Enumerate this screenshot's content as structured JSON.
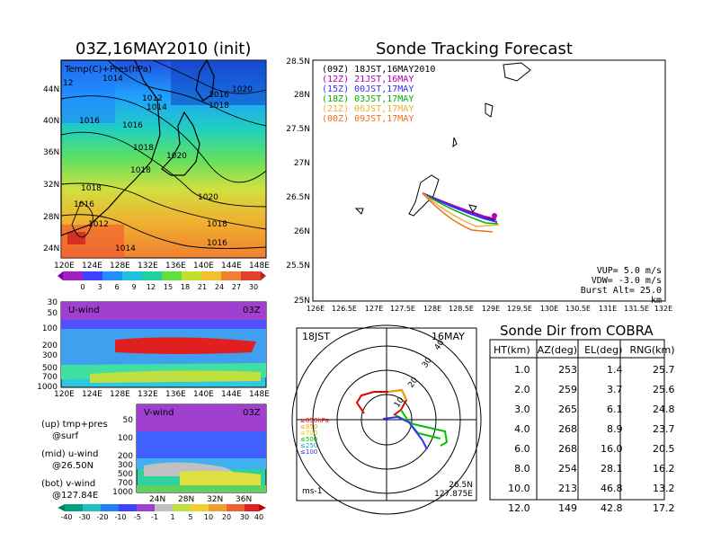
{
  "map_panel": {
    "title": "03Z,16MAY2010 (init)",
    "inner_label": "Temp(C)+Pres(hPa)",
    "lat_ticks": [
      "44N",
      "40N",
      "36N",
      "32N",
      "28N",
      "24N"
    ],
    "lon_ticks": [
      "120E",
      "124E",
      "128E",
      "132E",
      "136E",
      "140E",
      "144E",
      "148E"
    ],
    "isobar_labels": [
      "1014",
      "1012",
      "1016",
      "1020",
      "1016",
      "1018",
      "1020",
      "1018",
      "1020",
      "1016",
      "1018",
      "1020",
      "1018",
      "1012",
      "1014",
      "1016",
      "1018"
    ],
    "colorbar_ticks": [
      "0",
      "3",
      "6",
      "9",
      "12",
      "15",
      "18",
      "21",
      "24",
      "27",
      "30"
    ]
  },
  "u_panel": {
    "label": "U-wind",
    "time": "03Z",
    "y_ticks": [
      "30",
      "50",
      "100",
      "200",
      "300",
      "500",
      "700",
      "1000"
    ],
    "x_ticks": [
      "120E",
      "124E",
      "128E",
      "132E",
      "136E",
      "140E",
      "144E",
      "148E"
    ]
  },
  "v_panel": {
    "label": "V-wind",
    "time": "03Z",
    "y_ticks": [
      "50",
      "100",
      "200",
      "300",
      "500",
      "700",
      "1000"
    ],
    "x_ticks": [
      "24N",
      "28N",
      "32N",
      "36N"
    ],
    "colorbar_ticks": [
      "-40",
      "-30",
      "-20",
      "-10",
      "-5",
      "-1",
      "1",
      "5",
      "10",
      "20",
      "30",
      "40"
    ]
  },
  "legend_notes": {
    "line1": "(up) tmp+pres",
    "line2": "@surf",
    "line3": "(mid) u-wind",
    "line4": "@26.50N",
    "line5": "(bot) v-wind",
    "line6": "@127.84E"
  },
  "tracking": {
    "title": "Sonde Tracking Forecast",
    "lat_ticks": [
      "28.5N",
      "28N",
      "27.5N",
      "27N",
      "26.5N",
      "26N",
      "25.5N",
      "25N"
    ],
    "lon_ticks": [
      "126E",
      "126.5E",
      "127E",
      "127.5E",
      "128E",
      "128.5E",
      "129E",
      "129.5E",
      "130E",
      "130.5E",
      "131E",
      "131.5E",
      "132E"
    ],
    "legend": [
      {
        "text": "(09Z)  18JST,16MAY2010",
        "color": "#000000"
      },
      {
        "text": "(12Z)  21JST,16MAY",
        "color": "#b000b0"
      },
      {
        "text": "(15Z)  00JST,17MAY",
        "color": "#3030ff"
      },
      {
        "text": "(18Z)  03JST,17MAY",
        "color": "#00b000"
      },
      {
        "text": "(21Z)  06JST,17MAY",
        "color": "#f0b030"
      },
      {
        "text": "(00Z)  09JST,17MAY",
        "color": "#f07020"
      }
    ],
    "params": {
      "vup": "VUP=  5.0 m/s",
      "vdw": "VDW= -3.0 m/s",
      "burst": "Burst Alt= 25.0 km"
    }
  },
  "polar": {
    "time_label": "18JST",
    "date_label": "16MAY",
    "ring_labels": [
      "10",
      "20",
      "30",
      "40"
    ],
    "unit": "ms-1",
    "lat": "26.5N",
    "lon": "127.875E",
    "levels": [
      {
        "text": "≥850hPa",
        "color": "#e00000"
      },
      {
        "text": "≤850",
        "color": "#f0a000"
      },
      {
        "text": "≤700",
        "color": "#e0d000"
      },
      {
        "text": "≤500",
        "color": "#00c000"
      },
      {
        "text": "≤250",
        "color": "#00b0c0"
      },
      {
        "text": "≤100",
        "color": "#3030ff"
      }
    ]
  },
  "cobra": {
    "title": "Sonde Dir from COBRA",
    "headers": [
      "HT(km)",
      "AZ(deg)",
      "EL(deg)",
      "RNG(km)"
    ],
    "rows": [
      [
        "1.0",
        "253",
        "1.4",
        "25.7"
      ],
      [
        "2.0",
        "259",
        "3.7",
        "25.6"
      ],
      [
        "3.0",
        "265",
        "6.1",
        "24.8"
      ],
      [
        "4.0",
        "268",
        "8.9",
        "23.7"
      ],
      [
        "6.0",
        "268",
        "16.0",
        "20.5"
      ],
      [
        "8.0",
        "254",
        "28.1",
        "16.2"
      ],
      [
        "10.0",
        "213",
        "46.8",
        "13.2"
      ],
      [
        "12.0",
        "149",
        "42.8",
        "17.2"
      ]
    ]
  },
  "chart_data": {
    "type": "table",
    "title": "Sonde Dir from COBRA",
    "columns": [
      "HT(km)",
      "AZ(deg)",
      "EL(deg)",
      "RNG(km)"
    ],
    "rows": [
      [
        1.0,
        253,
        1.4,
        25.7
      ],
      [
        2.0,
        259,
        3.7,
        25.6
      ],
      [
        3.0,
        265,
        6.1,
        24.8
      ],
      [
        4.0,
        268,
        8.9,
        23.7
      ],
      [
        6.0,
        268,
        16.0,
        20.5
      ],
      [
        8.0,
        254,
        28.1,
        16.2
      ],
      [
        10.0,
        213,
        46.8,
        13.2
      ],
      [
        12.0,
        149,
        42.8,
        17.2
      ]
    ]
  }
}
